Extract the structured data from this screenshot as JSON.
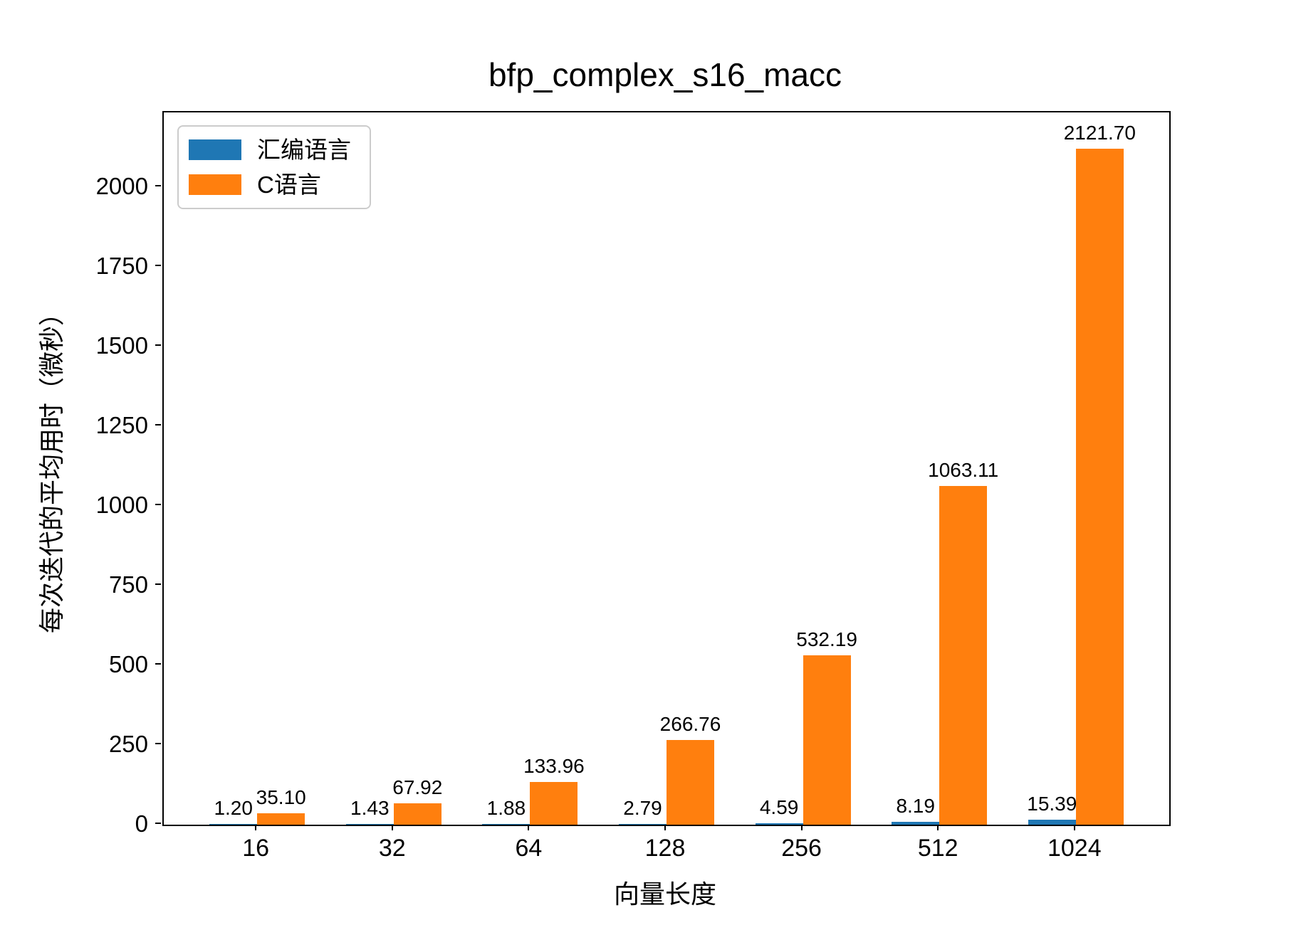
{
  "chart_data": {
    "type": "bar",
    "title": "bfp_complex_s16_macc",
    "xlabel": "向量长度",
    "ylabel": "每次迭代的平均用时（微秒）",
    "categories": [
      "16",
      "32",
      "64",
      "128",
      "256",
      "512",
      "1024"
    ],
    "series": [
      {
        "name": "汇编语言",
        "color": "#1f77b4",
        "values": [
          1.2,
          1.43,
          1.88,
          2.79,
          4.59,
          8.19,
          15.39
        ],
        "labels": [
          "1.20",
          "1.43",
          "1.88",
          "2.79",
          "4.59",
          "8.19",
          "15.39"
        ]
      },
      {
        "name": "C语言",
        "color": "#ff7f0e",
        "values": [
          35.1,
          67.92,
          133.96,
          266.76,
          532.19,
          1063.11,
          2121.7
        ],
        "labels": [
          "35.10",
          "67.92",
          "133.96",
          "266.76",
          "532.19",
          "1063.11",
          "2121.70"
        ]
      }
    ],
    "yticks": [
      0,
      250,
      500,
      750,
      1000,
      1250,
      1500,
      1750,
      2000
    ],
    "ylim": [
      0,
      2235
    ],
    "grid": false,
    "legend_position": "upper left",
    "bar_value_labels": true,
    "axis_color": "#000000",
    "background_color": "#ffffff"
  }
}
